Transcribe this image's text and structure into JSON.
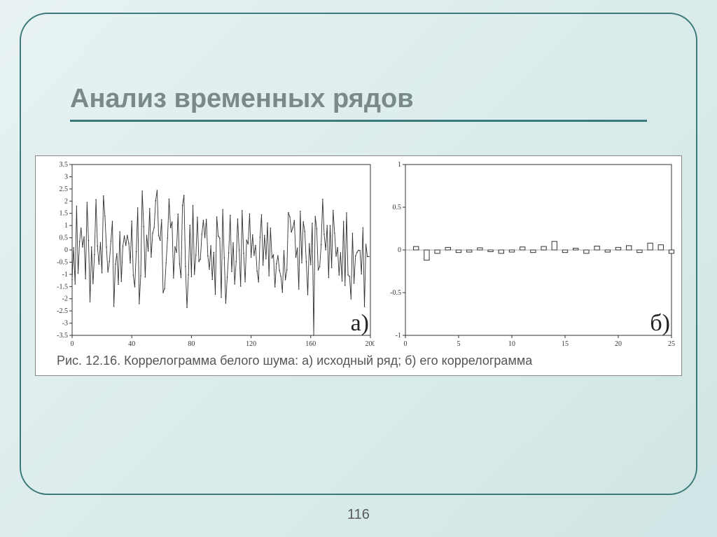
{
  "slide": {
    "title": "Анализ временных рядов",
    "page_number": "116"
  },
  "figure": {
    "caption": "Рис. 12.16. Коррелограмма белого шума:  а) исходный ряд; б) его коррелограмма",
    "panel_a": {
      "type": "line",
      "label": "а)",
      "xlim": [
        0,
        200
      ],
      "ylim": [
        -3.5,
        3.5
      ],
      "xticks": [
        0,
        40,
        80,
        120,
        160,
        200
      ],
      "yticks": [
        -3.5,
        -3,
        -2.5,
        -2,
        -1.5,
        -1,
        -0.5,
        0,
        0.5,
        1,
        1.5,
        2,
        2.5,
        3,
        3.5
      ],
      "xtick_labels": [
        "0",
        "40",
        "80",
        "120",
        "160",
        "200"
      ],
      "ytick_labels": [
        "-3.5",
        "-3",
        "-2.5",
        "-2",
        "-1.5",
        "-1",
        "-0.5",
        "0",
        "0.5",
        "1",
        "1.5",
        "2",
        "2.5",
        "3",
        "3.5"
      ],
      "line_color": "#333333",
      "background_color": "#ffffff",
      "seed_description": "white noise ~200 points, gaussian-like, range approx -3 to 3"
    },
    "panel_b": {
      "type": "bar",
      "label": "б)",
      "xlim": [
        0,
        25
      ],
      "ylim": [
        -1,
        1
      ],
      "xticks": [
        0,
        5,
        10,
        15,
        20,
        25
      ],
      "yticks": [
        -1,
        -0.5,
        0,
        0.5,
        1
      ],
      "xtick_labels": [
        "0",
        "5",
        "10",
        "15",
        "20",
        "25"
      ],
      "ytick_labels": [
        "-1",
        "-0.5",
        "0",
        "0.5",
        "1"
      ],
      "bar_outline_color": "#333333",
      "bar_fill_color": "#ffffff",
      "background_color": "#ffffff",
      "lags": [
        1,
        2,
        3,
        4,
        5,
        6,
        7,
        8,
        9,
        10,
        11,
        12,
        13,
        14,
        15,
        16,
        17,
        18,
        19,
        20,
        21,
        22,
        23,
        24,
        25
      ],
      "values": [
        0.04,
        -0.12,
        -0.04,
        0.03,
        -0.03,
        -0.025,
        0.025,
        -0.02,
        -0.04,
        -0.025,
        0.035,
        -0.03,
        0.04,
        0.1,
        -0.03,
        0.02,
        -0.04,
        0.045,
        -0.025,
        0.03,
        0.05,
        -0.03,
        0.08,
        0.06,
        -0.04
      ]
    }
  }
}
